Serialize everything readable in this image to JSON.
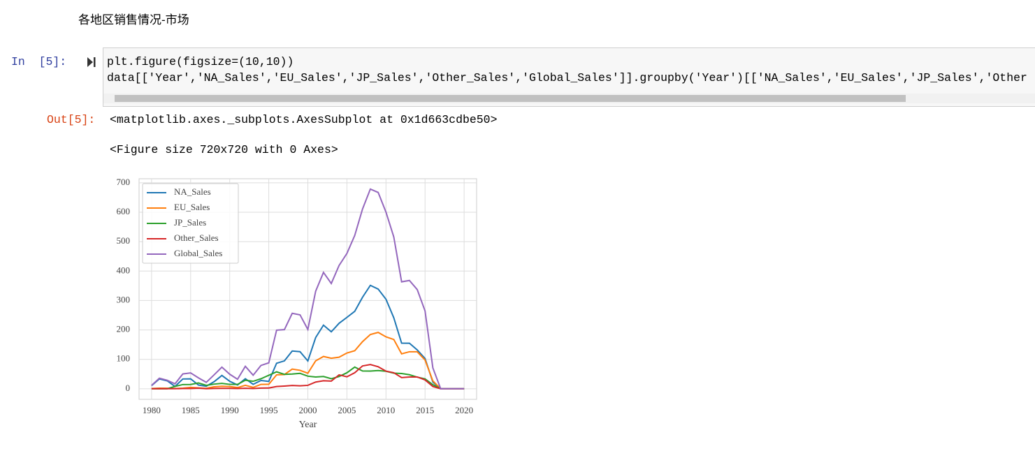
{
  "heading": "各地区销售情况-市场",
  "input_prompt": "In  [5]:",
  "code": [
    "plt.figure(figsize=(10,10))",
    "data[['Year','NA_Sales','EU_Sales','JP_Sales','Other_Sales','Global_Sales']].groupby('Year')[['NA_Sales','EU_Sales','JP_Sales','Other"
  ],
  "output_prompt": "Out[5]:",
  "outputs": [
    "<matplotlib.axes._subplots.AxesSubplot at 0x1d663cdbe50>",
    "<Figure size 720x720 with 0 Axes>"
  ],
  "chart_data": {
    "type": "line",
    "x": [
      1980,
      1981,
      1982,
      1983,
      1984,
      1985,
      1986,
      1987,
      1988,
      1989,
      1990,
      1991,
      1992,
      1993,
      1994,
      1995,
      1996,
      1997,
      1998,
      1999,
      2000,
      2001,
      2002,
      2003,
      2004,
      2005,
      2006,
      2007,
      2008,
      2009,
      2010,
      2011,
      2012,
      2013,
      2014,
      2015,
      2016,
      2017,
      2020
    ],
    "series": [
      {
        "name": "NA_Sales",
        "color": "#1f77b4",
        "values": [
          10.59,
          33.4,
          26.92,
          7.76,
          33.28,
          33.73,
          12.5,
          8.46,
          23.87,
          45.15,
          25.46,
          12.76,
          33.87,
          15.12,
          28.15,
          24.82,
          86.76,
          94.75,
          128.36,
          126.06,
          94.49,
          173.98,
          216.19,
          193.59,
          222.59,
          242.61,
          263.12,
          311.18,
          351.44,
          338.85,
          304.24,
          241.21,
          154.96,
          154.77,
          131.97,
          102.82,
          22.66,
          0,
          0.27
        ]
      },
      {
        "name": "EU_Sales",
        "color": "#ff7f0e",
        "values": [
          0.67,
          1.96,
          1.65,
          0.8,
          2.1,
          4.74,
          2.84,
          1.41,
          6.59,
          8.44,
          7.63,
          3.95,
          11.71,
          4.65,
          14.88,
          14.9,
          47.26,
          48.32,
          66.9,
          62.67,
          52.75,
          94.89,
          109.74,
          103.81,
          107.32,
          121.55,
          129.24,
          160.18,
          184.4,
          191.59,
          176.57,
          167.44,
          118.78,
          125.8,
          125.65,
          97.71,
          26.76,
          0,
          0
        ]
      },
      {
        "name": "JP_Sales",
        "color": "#2ca02c",
        "values": [
          0,
          0,
          0,
          8.1,
          14.27,
          14.56,
          19.81,
          11.63,
          15.76,
          18.36,
          14.88,
          14.78,
          28.91,
          25.33,
          33.99,
          45.75,
          57.44,
          48.87,
          50.04,
          52.34,
          42.77,
          39.86,
          41.76,
          34.2,
          41.65,
          54.28,
          73.73,
          60.29,
          60.26,
          61.89,
          59.49,
          53.04,
          51.8,
          47.59,
          39.46,
          33.72,
          13.7,
          0.05,
          0
        ]
      },
      {
        "name": "Other_Sales",
        "color": "#d62728",
        "values": [
          0.12,
          0.32,
          0.31,
          0.14,
          0.7,
          0.92,
          1.93,
          0.2,
          0.99,
          1.5,
          1.4,
          0.74,
          1.65,
          0.89,
          2.2,
          2.64,
          7.69,
          9.13,
          11.03,
          10.05,
          11.62,
          22.76,
          27.28,
          26.01,
          47.29,
          40.58,
          54.43,
          77.58,
          82.39,
          74.77,
          59.9,
          54.39,
          37.82,
          39.82,
          40.02,
          30.01,
          7.75,
          0,
          0.01
        ]
      },
      {
        "name": "Global_Sales",
        "color": "#9467bd",
        "values": [
          11.38,
          35.77,
          28.86,
          16.79,
          50.36,
          53.94,
          37.07,
          21.74,
          47.22,
          73.45,
          49.39,
          32.23,
          76.16,
          45.98,
          79.17,
          88.11,
          199.15,
          200.98,
          256.47,
          251.27,
          201.56,
          331.47,
          395.52,
          357.85,
          419.31,
          459.94,
          521.04,
          611.13,
          678.9,
          667.3,
          600.45,
          515.99,
          363.54,
          368.11,
          337.05,
          264.44,
          70.93,
          0.05,
          0.29
        ]
      }
    ],
    "xlabel": "Year",
    "xlim": [
      1978.4,
      2021.6
    ],
    "xticks": [
      1980,
      1985,
      1990,
      1995,
      2000,
      2005,
      2010,
      2015,
      2020
    ],
    "ylim": [
      -36,
      714
    ],
    "yticks": [
      0,
      100,
      200,
      300,
      400,
      500,
      600,
      700
    ],
    "grid": true,
    "legend": "upper left"
  }
}
